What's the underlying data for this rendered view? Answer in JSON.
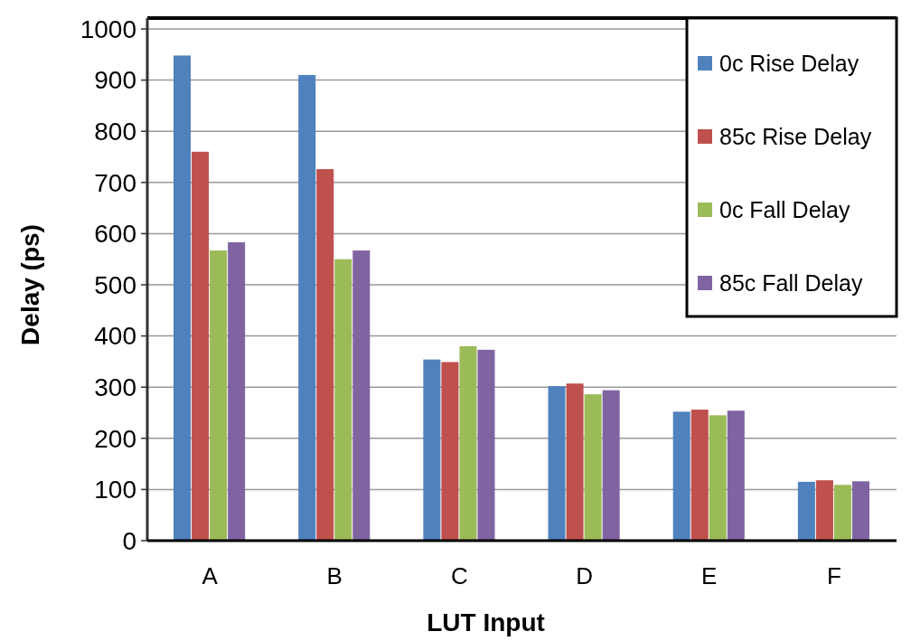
{
  "chart_data": {
    "type": "bar",
    "xlabel": "LUT Input",
    "ylabel": "Delay (ps)",
    "categories": [
      "A",
      "B",
      "C",
      "D",
      "E",
      "F"
    ],
    "series": [
      {
        "name": "0c Rise Delay",
        "color": "#4f81bd",
        "values": [
          948,
          910,
          354,
          302,
          252,
          115
        ]
      },
      {
        "name": "85c Rise Delay",
        "color": "#c0504d",
        "values": [
          760,
          726,
          349,
          307,
          256,
          118
        ]
      },
      {
        "name": "0c Fall Delay",
        "color": "#9bbb59",
        "values": [
          567,
          550,
          380,
          286,
          245,
          109
        ]
      },
      {
        "name": "85c Fall Delay",
        "color": "#8064a2",
        "values": [
          583,
          567,
          373,
          294,
          254,
          116
        ]
      }
    ],
    "ylim": [
      0,
      1000
    ],
    "yticks": [
      0,
      100,
      200,
      300,
      400,
      500,
      600,
      700,
      800,
      900,
      1000
    ],
    "grid": "y",
    "legend": "top right"
  }
}
